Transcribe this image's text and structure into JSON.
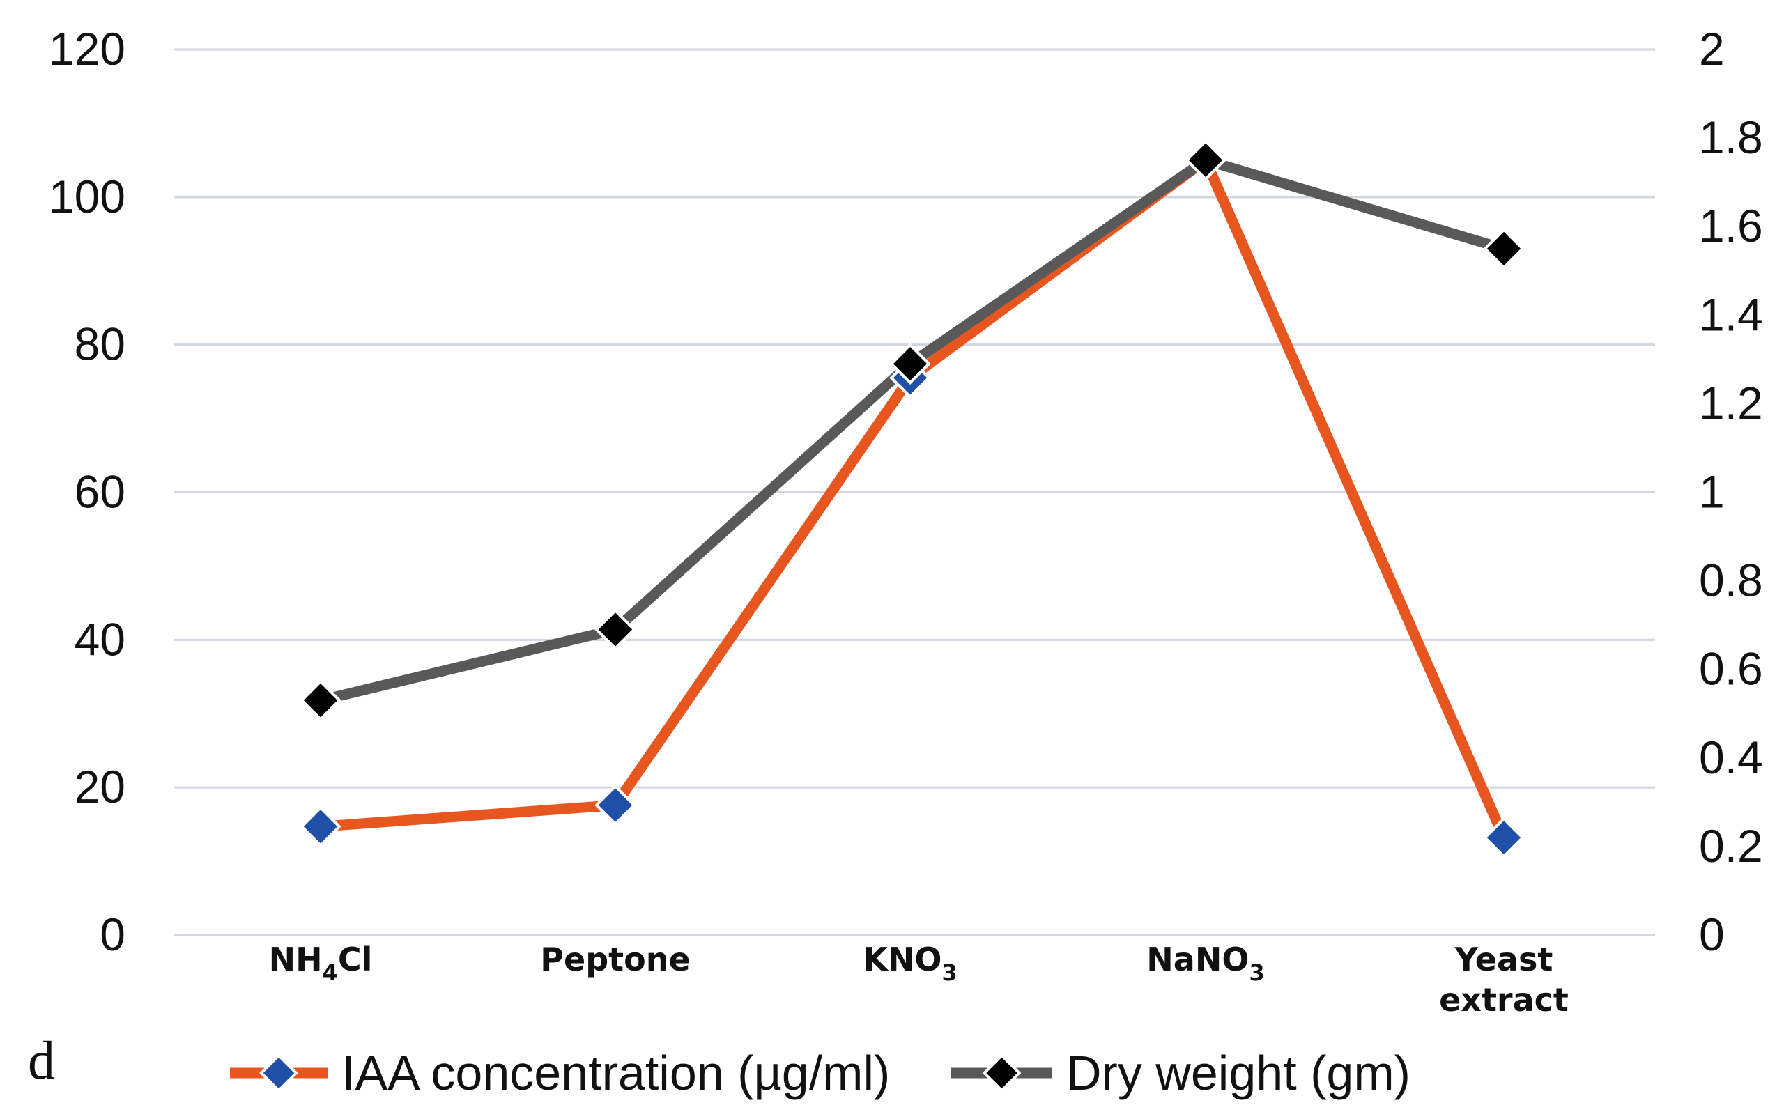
{
  "panel_label": "d",
  "colors": {
    "iaa_line": "#e8561f",
    "iaa_marker": "#1f4fa6",
    "dry_line": "#595959",
    "dry_marker": "#000000",
    "grid": "#d0d5de",
    "marker_outline": "#ffffff"
  },
  "chart_data": {
    "type": "line",
    "title": "",
    "xlabel": "",
    "ylabel": "",
    "categories": [
      {
        "base": "NH",
        "sub": "4",
        "tail": "Cl"
      },
      {
        "base": "Peptone"
      },
      {
        "base": "KNO",
        "sub": "3"
      },
      {
        "base": "NaNO",
        "sub": "3"
      },
      {
        "lines": [
          "Yeast",
          "extract"
        ]
      }
    ],
    "axes": {
      "left": {
        "ylim": [
          0,
          120
        ],
        "ticks": [
          "0",
          "20",
          "40",
          "60",
          "80",
          "100",
          "120"
        ]
      },
      "right": {
        "ylim": [
          0,
          2
        ],
        "ticks": [
          "0",
          "0.2",
          "0.4",
          "0.6",
          "0.8",
          "1",
          "1.2",
          "1.4",
          "1.6",
          "1.8",
          "2"
        ]
      }
    },
    "grid": true,
    "legend_position": "bottom",
    "series": [
      {
        "name": "IAA concentration (µg/ml)",
        "axis": "left",
        "values": [
          14.7,
          17.6,
          75.5,
          105.0,
          13.2
        ],
        "marker": "diamond"
      },
      {
        "name": "Dry weight (gm)",
        "axis": "right",
        "values": [
          0.53,
          0.69,
          1.29,
          1.75,
          1.55
        ],
        "marker": "diamond"
      }
    ]
  }
}
